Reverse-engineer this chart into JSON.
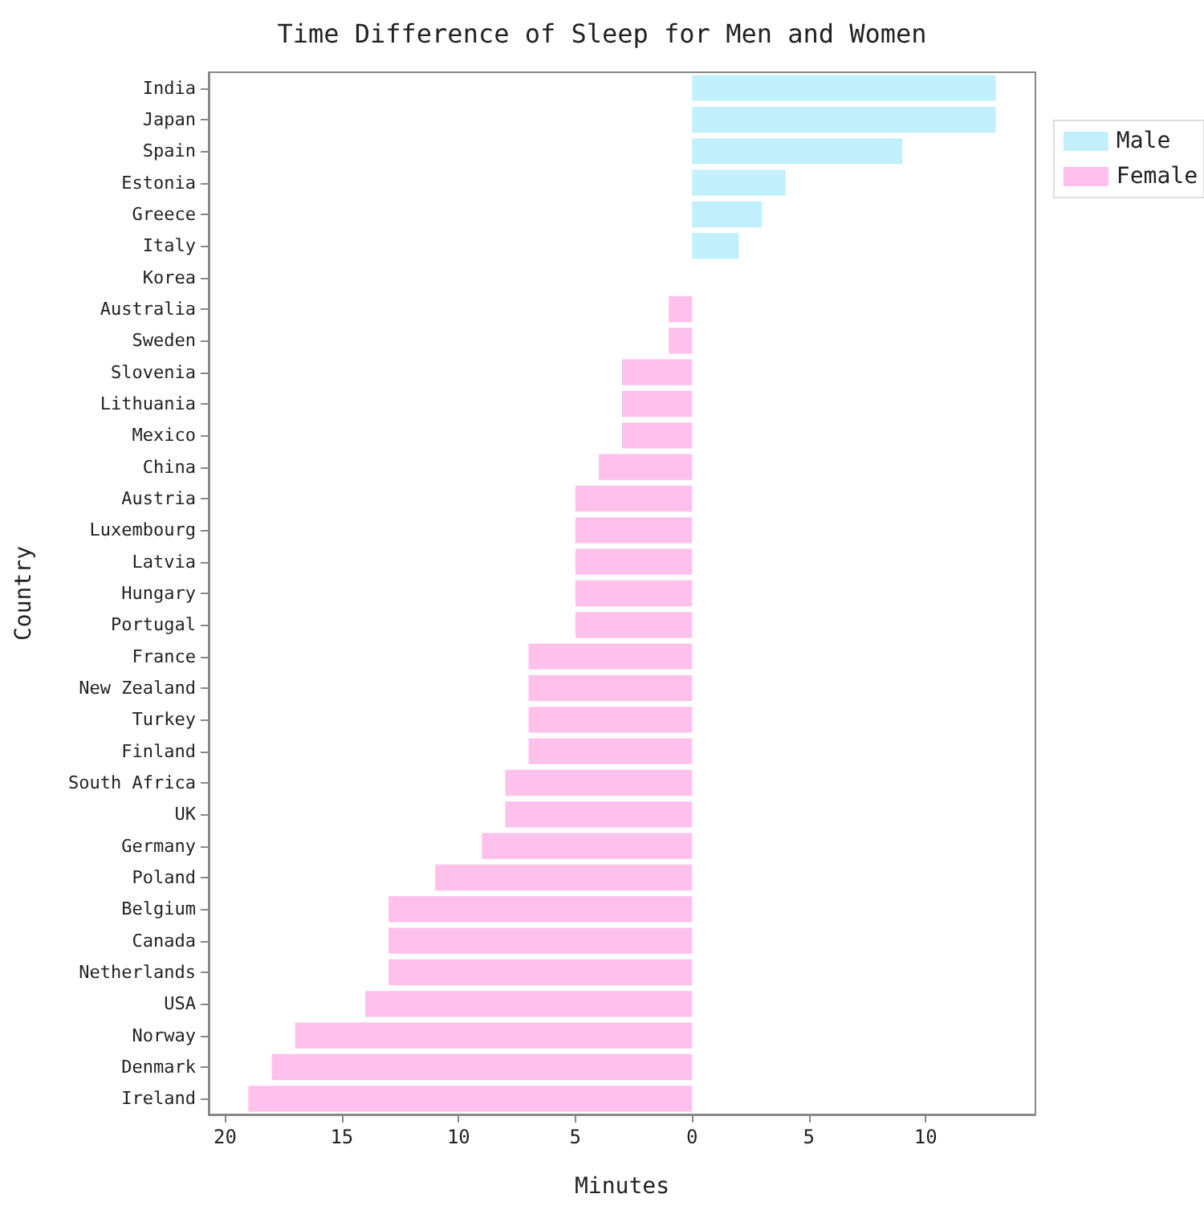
{
  "chart_data": {
    "type": "bar",
    "orientation": "horizontal",
    "title": "Time Difference of Sleep for Men and Women",
    "xlabel": "Minutes",
    "ylabel": "Country",
    "categories": [
      "India",
      "Japan",
      "Spain",
      "Estonia",
      "Greece",
      "Italy",
      "Korea",
      "Australia",
      "Sweden",
      "Slovenia",
      "Lithuania",
      "Mexico",
      "China",
      "Austria",
      "Luxembourg",
      "Latvia",
      "Hungary",
      "Portugal",
      "France",
      "New Zealand",
      "Turkey",
      "Finland",
      "South Africa",
      "UK",
      "Germany",
      "Poland",
      "Belgium",
      "Canada",
      "Netherlands",
      "USA",
      "Norway",
      "Denmark",
      "Ireland"
    ],
    "series": [
      {
        "name": "Male",
        "color": "#c2f0fc",
        "values": [
          13,
          13,
          9,
          4,
          3,
          2,
          0,
          null,
          null,
          null,
          null,
          null,
          null,
          null,
          null,
          null,
          null,
          null,
          null,
          null,
          null,
          null,
          null,
          null,
          null,
          null,
          null,
          null,
          null,
          null,
          null,
          null,
          null
        ]
      },
      {
        "name": "Female",
        "color": "#fdc1ec",
        "values": [
          null,
          null,
          null,
          null,
          null,
          null,
          null,
          -1,
          -1,
          -3,
          -3,
          -3,
          -4,
          -5,
          -5,
          -5,
          -5,
          -5,
          -7,
          -7,
          -7,
          -7,
          -8,
          -8,
          -9,
          -11,
          -13,
          -13,
          -13,
          -14,
          -17,
          -18,
          -19
        ]
      }
    ],
    "xlim": [
      -20.7,
      14.7
    ],
    "xticks": [
      {
        "value": -20,
        "label": "20"
      },
      {
        "value": -15,
        "label": "15"
      },
      {
        "value": -10,
        "label": "10"
      },
      {
        "value": -5,
        "label": "5"
      },
      0,
      5,
      10
    ],
    "legend": "top right",
    "grid": false
  }
}
